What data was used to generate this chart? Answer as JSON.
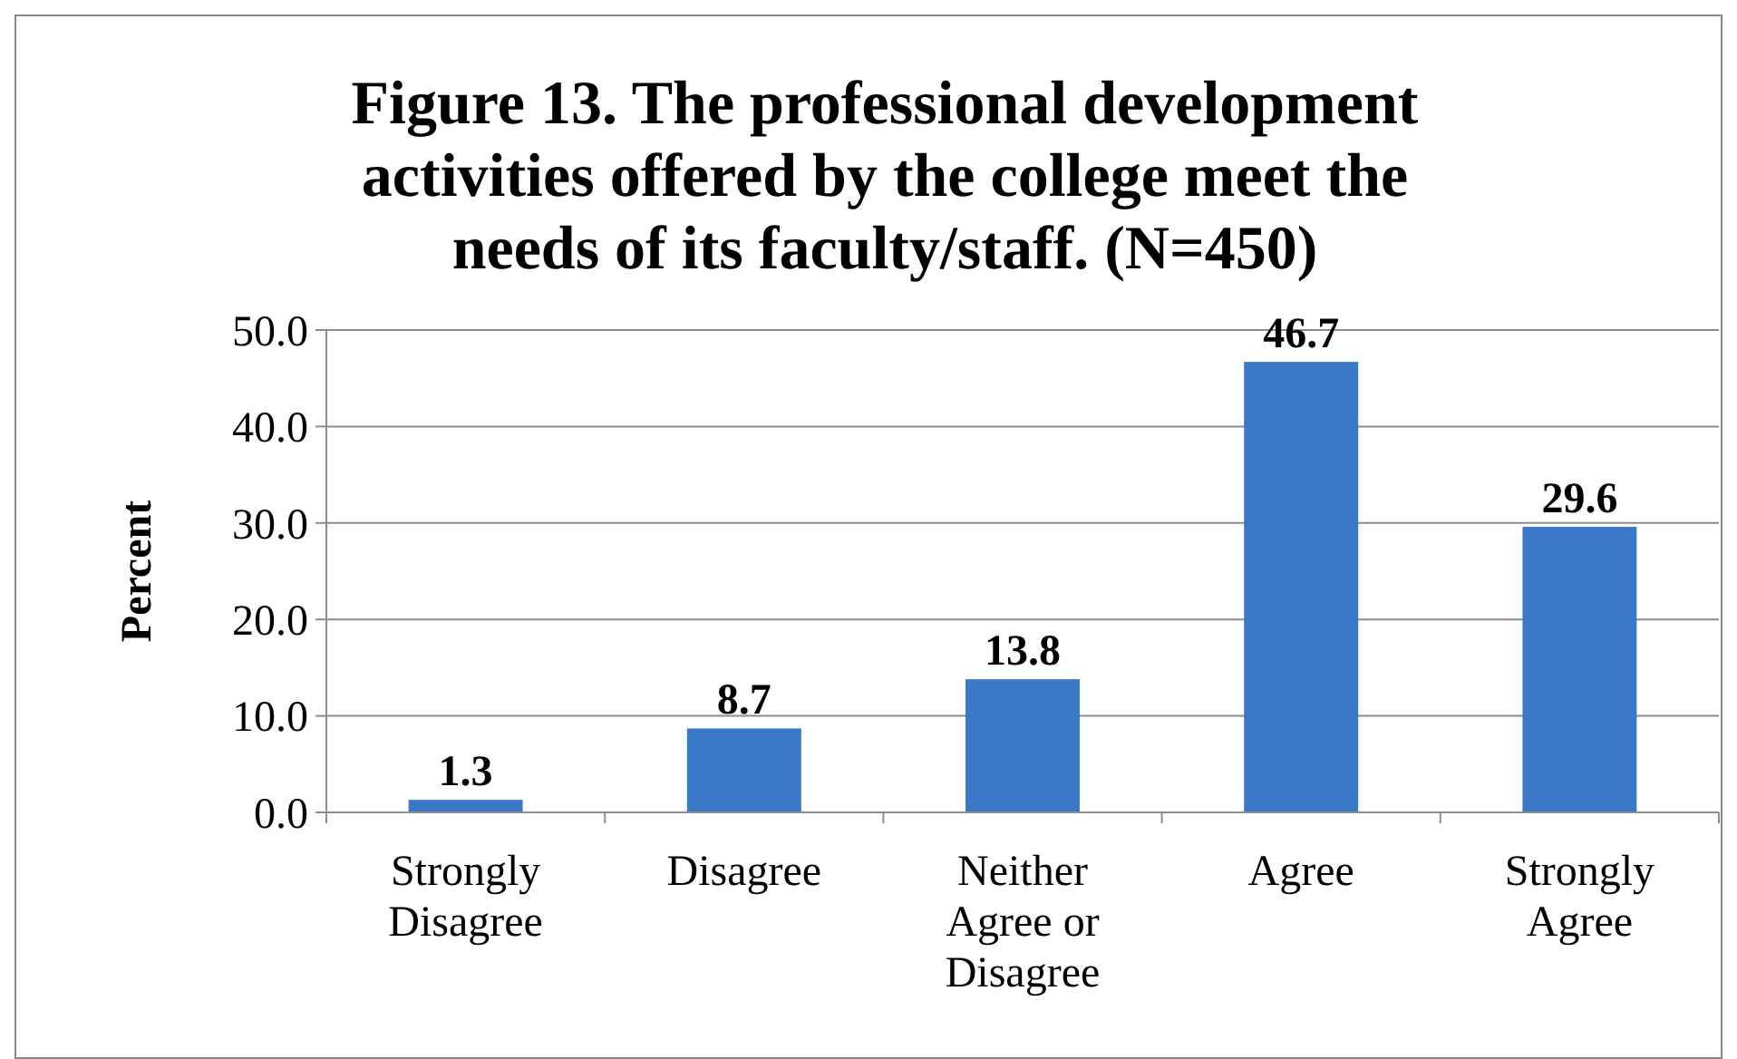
{
  "chart_data": {
    "type": "bar",
    "title": "Figure 13. The professional development activities offered by the college meet the needs of its faculty/staff.  (N=450)",
    "ylabel": "Percent",
    "categories": [
      "Strongly Disagree",
      "Disagree",
      "Neither Agree or Disagree",
      "Agree",
      "Strongly Agree"
    ],
    "values": [
      1.3,
      8.7,
      13.8,
      46.7,
      29.6
    ],
    "color": "#3a78c8",
    "value_labels": [
      "1.3",
      "8.7",
      "13.8",
      "46.7",
      "29.6"
    ],
    "ylim": [
      0,
      50
    ],
    "yticks": [
      {
        "value": 0,
        "label": "0.0"
      },
      {
        "value": 10,
        "label": "10.0"
      },
      {
        "value": 20,
        "label": "20.0"
      },
      {
        "value": 30,
        "label": "30.0"
      },
      {
        "value": 40,
        "label": "40.0"
      },
      {
        "value": 50,
        "label": "50.0"
      }
    ],
    "grid": "y"
  }
}
